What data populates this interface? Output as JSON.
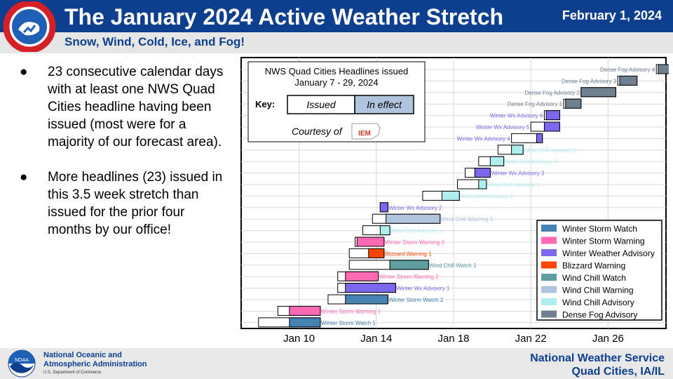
{
  "header": {
    "title": "The January 2024 Active Weather Stretch",
    "date": "February 1, 2024",
    "subtitle": "Snow, Wind, Cold, Ice, and Fog!",
    "logo_text": "NATIONAL WEATHER SERVICE"
  },
  "bullets": [
    {
      "marker": "●",
      "text": "23 consecutive calendar days with at least one NWS Quad Cities headline having been issued (most were for a majority of our forecast area)."
    },
    {
      "marker": "●",
      "text": "More headlines (23) issued in this 3.5 week stretch than issued for the prior four months by our office!"
    }
  ],
  "chart_data": {
    "type": "gantt",
    "title": "NWS Quad Cities Headlines issued",
    "subtitle": "January 7 - 29, 2024",
    "key": {
      "label": "Key:",
      "issued": "Issued",
      "in_effect": "In effect"
    },
    "courtesy": {
      "text": "Courtesy of",
      "logo": "IEM"
    },
    "x_ticks": [
      "Jan 10",
      "Jan 14",
      "Jan 18",
      "Jan 22",
      "Jan 26"
    ],
    "x_tick_values": [
      10,
      14,
      18,
      22,
      26
    ],
    "xlim": [
      7.0,
      29.0
    ],
    "colors": {
      "Winter Storm Watch": "#4682b4",
      "Winter Storm Warning": "#ff69b4",
      "Winter Weather Advisory": "#7b68ee",
      "Blizzard Warning": "#ff4500",
      "Wind Chill Watch": "#5f9ea0",
      "Wind Chill Warning": "#b0c4de",
      "Wind Chill Advisory": "#afeeee",
      "Dense Fog Advisory": "#708090"
    },
    "legend": {
      "position": "bottom-right",
      "entries": [
        "Winter Storm Watch",
        "Winter Storm Warning",
        "Winter Weather Advisory",
        "Blizzard Warning",
        "Wind Chill Watch",
        "Wind Chill Warning",
        "Wind Chill Advisory",
        "Dense Fog Advisory"
      ]
    },
    "bars": [
      {
        "label": "Winter Storm Watch 1",
        "type": "Winter Storm Watch",
        "issued": 7.9,
        "start": 9.5,
        "end": 11.1
      },
      {
        "label": "Winter Storm Warning 1",
        "type": "Winter Storm Warning",
        "issued": 8.9,
        "start": 9.5,
        "end": 11.1
      },
      {
        "label": "Winter Storm Watch 2",
        "type": "Winter Storm Watch",
        "issued": 11.5,
        "start": 12.4,
        "end": 14.6
      },
      {
        "label": "Winter Wx Advisory 1",
        "type": "Winter Weather Advisory",
        "issued": 12.0,
        "start": 12.4,
        "end": 15.0
      },
      {
        "label": "Winter Storm Warning 2",
        "type": "Winter Storm Warning",
        "issued": 12.0,
        "start": 12.4,
        "end": 14.1
      },
      {
        "label": "Wind Chill Watch 1",
        "type": "Wind Chill Watch",
        "issued": 12.6,
        "start": 14.7,
        "end": 16.7
      },
      {
        "label": "Blizzard Warning 1",
        "type": "Blizzard Warning",
        "issued": 12.6,
        "start": 13.6,
        "end": 14.4
      },
      {
        "label": "Winter Storm Warning 3",
        "type": "Winter Storm Warning",
        "issued": 12.9,
        "start": 13.0,
        "end": 14.4
      },
      {
        "label": "Wind Chill Advisory 1",
        "type": "Wind Chill Advisory",
        "issued": 13.3,
        "start": 14.2,
        "end": 14.7
      },
      {
        "label": "Wind Chill Warning 1",
        "type": "Wind Chill Warning",
        "issued": 13.8,
        "start": 14.5,
        "end": 17.3
      },
      {
        "label": "Winter Wx Advisory 2",
        "type": "Winter Weather Advisory",
        "issued": 14.2,
        "start": 14.2,
        "end": 14.6
      },
      {
        "label": "Wind Chill Advisory 2",
        "type": "Wind Chill Advisory",
        "issued": 16.4,
        "start": 17.4,
        "end": 18.3
      },
      {
        "label": "Wind Chill Advisory 3",
        "type": "Wind Chill Advisory",
        "issued": 18.2,
        "start": 19.3,
        "end": 19.7
      },
      {
        "label": "Winter Wx Advisory 3",
        "type": "Winter Weather Advisory",
        "issued": 18.6,
        "start": 19.1,
        "end": 19.9
      },
      {
        "label": "Wind Chill Advisory 4",
        "type": "Wind Chill Advisory",
        "issued": 19.3,
        "start": 19.9,
        "end": 20.6
      },
      {
        "label": "Wind Chill Advisory 5",
        "type": "Wind Chill Advisory",
        "issued": 20.3,
        "start": 21.0,
        "end": 21.6
      },
      {
        "label": "Winter Wx Advisory 4",
        "type": "Winter Weather Advisory",
        "issued": 21.0,
        "start": 22.3,
        "end": 22.6
      },
      {
        "label": "Winter Wx Advisory 5",
        "type": "Winter Weather Advisory",
        "issued": 22.0,
        "start": 22.7,
        "end": 23.5
      },
      {
        "label": "Winter Wx Advisory 6",
        "type": "Winter Weather Advisory",
        "issued": 22.7,
        "start": 22.8,
        "end": 23.5
      },
      {
        "label": "Dense Fog Advisory 1",
        "type": "Dense Fog Advisory",
        "issued": 23.7,
        "start": 23.8,
        "end": 24.6
      },
      {
        "label": "Dense Fog Advisory 2",
        "type": "Dense Fog Advisory",
        "issued": 24.6,
        "start": 24.6,
        "end": 26.4
      },
      {
        "label": "Dense Fog Advisory 3",
        "type": "Dense Fog Advisory",
        "issued": 26.5,
        "start": 26.6,
        "end": 27.5
      },
      {
        "label": "Dense Fog Advisory 4",
        "type": "Dense Fog Advisory",
        "issued": 28.5,
        "start": 28.6,
        "end": 29.3
      }
    ]
  },
  "footer": {
    "noaa_line1": "National Oceanic and",
    "noaa_line2": "Atmospheric Administration",
    "noaa_sub": "U.S. Department of Commerce",
    "noaa_logo": "NOAA",
    "nws_line1": "National Weather Service",
    "nws_line2": "Quad Cities, IA/IL"
  }
}
